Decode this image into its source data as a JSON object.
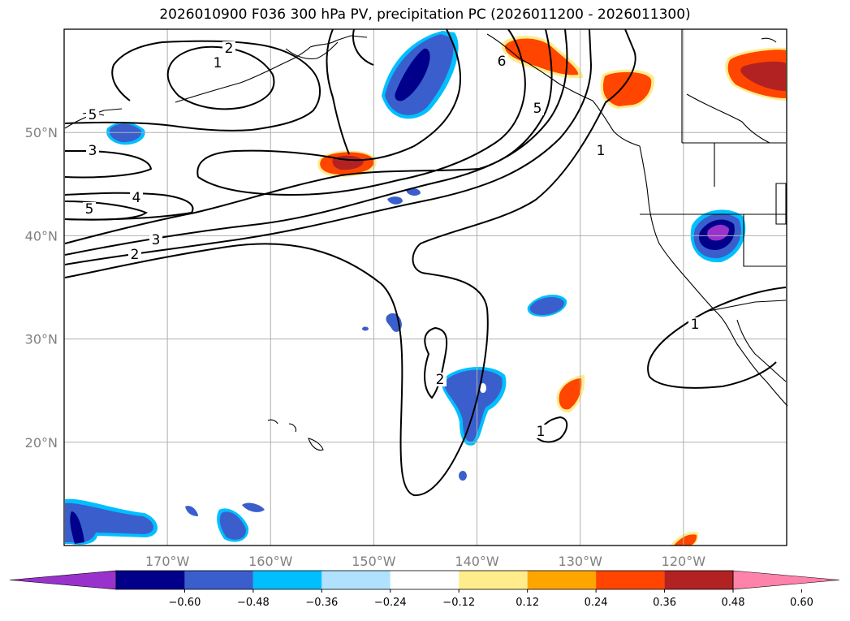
{
  "title": "2026010900 F036 300 hPa PV, precipitation PC (2026011200 - 2026011300)",
  "map": {
    "lon_range": [
      180,
      110
    ],
    "lat_range": [
      10,
      60
    ],
    "lat_ticks": [
      {
        "value": 50,
        "label": "50°N"
      },
      {
        "value": 40,
        "label": "40°N"
      },
      {
        "value": 30,
        "label": "30°N"
      },
      {
        "value": 20,
        "label": "20°N"
      }
    ],
    "lon_ticks": [
      {
        "value": 170,
        "label": "170°W"
      },
      {
        "value": 160,
        "label": "160°W"
      },
      {
        "value": 150,
        "label": "150°W"
      },
      {
        "value": 140,
        "label": "140°W"
      },
      {
        "value": 130,
        "label": "130°W"
      },
      {
        "value": 120,
        "label": "120°W"
      }
    ],
    "grid": true
  },
  "pv_contour_labels": [
    "1",
    "2",
    "2",
    "3",
    "3",
    "4",
    "5",
    "5",
    "5",
    "6",
    "1",
    "1",
    "1",
    "2"
  ],
  "colorbar": {
    "ticks": [
      "−0.60",
      "−0.48",
      "−0.36",
      "−0.24",
      "−0.12",
      "0.12",
      "0.24",
      "0.36",
      "0.48",
      "0.60"
    ],
    "colors": [
      "#9932cc",
      "#00008b",
      "#3a5fcd",
      "#00bfff",
      "#b0e2ff",
      "#ffffff",
      "#ffec8b",
      "#ffa500",
      "#ff4500",
      "#b22222",
      "#ff82ab"
    ]
  }
}
